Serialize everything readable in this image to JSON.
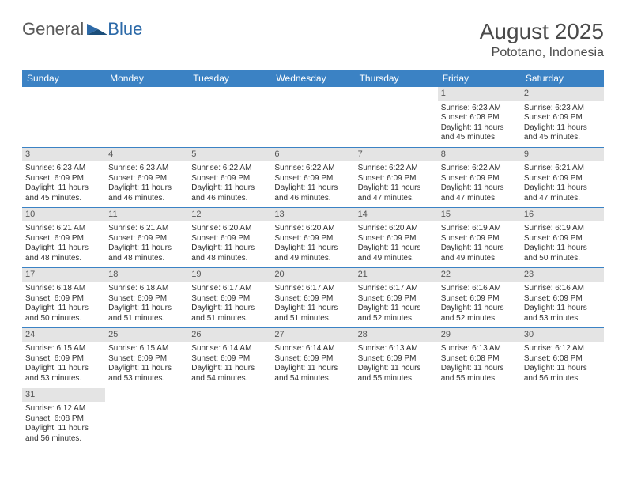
{
  "brand": {
    "part1": "General",
    "part2": "Blue"
  },
  "title": "August 2025",
  "location": "Pototano, Indonesia",
  "colors": {
    "header_bg": "#3b82c4",
    "header_fg": "#ffffff",
    "daynum_bg": "#e4e4e4",
    "row_border": "#3b82c4",
    "brand_gray": "#5a5a5a",
    "brand_blue": "#2d6aa8"
  },
  "weekdays": [
    "Sunday",
    "Monday",
    "Tuesday",
    "Wednesday",
    "Thursday",
    "Friday",
    "Saturday"
  ],
  "weeks": [
    [
      null,
      null,
      null,
      null,
      null,
      {
        "n": "1",
        "sr": "6:23 AM",
        "ss": "6:08 PM",
        "dl": "11 hours and 45 minutes."
      },
      {
        "n": "2",
        "sr": "6:23 AM",
        "ss": "6:09 PM",
        "dl": "11 hours and 45 minutes."
      }
    ],
    [
      {
        "n": "3",
        "sr": "6:23 AM",
        "ss": "6:09 PM",
        "dl": "11 hours and 45 minutes."
      },
      {
        "n": "4",
        "sr": "6:23 AM",
        "ss": "6:09 PM",
        "dl": "11 hours and 46 minutes."
      },
      {
        "n": "5",
        "sr": "6:22 AM",
        "ss": "6:09 PM",
        "dl": "11 hours and 46 minutes."
      },
      {
        "n": "6",
        "sr": "6:22 AM",
        "ss": "6:09 PM",
        "dl": "11 hours and 46 minutes."
      },
      {
        "n": "7",
        "sr": "6:22 AM",
        "ss": "6:09 PM",
        "dl": "11 hours and 47 minutes."
      },
      {
        "n": "8",
        "sr": "6:22 AM",
        "ss": "6:09 PM",
        "dl": "11 hours and 47 minutes."
      },
      {
        "n": "9",
        "sr": "6:21 AM",
        "ss": "6:09 PM",
        "dl": "11 hours and 47 minutes."
      }
    ],
    [
      {
        "n": "10",
        "sr": "6:21 AM",
        "ss": "6:09 PM",
        "dl": "11 hours and 48 minutes."
      },
      {
        "n": "11",
        "sr": "6:21 AM",
        "ss": "6:09 PM",
        "dl": "11 hours and 48 minutes."
      },
      {
        "n": "12",
        "sr": "6:20 AM",
        "ss": "6:09 PM",
        "dl": "11 hours and 48 minutes."
      },
      {
        "n": "13",
        "sr": "6:20 AM",
        "ss": "6:09 PM",
        "dl": "11 hours and 49 minutes."
      },
      {
        "n": "14",
        "sr": "6:20 AM",
        "ss": "6:09 PM",
        "dl": "11 hours and 49 minutes."
      },
      {
        "n": "15",
        "sr": "6:19 AM",
        "ss": "6:09 PM",
        "dl": "11 hours and 49 minutes."
      },
      {
        "n": "16",
        "sr": "6:19 AM",
        "ss": "6:09 PM",
        "dl": "11 hours and 50 minutes."
      }
    ],
    [
      {
        "n": "17",
        "sr": "6:18 AM",
        "ss": "6:09 PM",
        "dl": "11 hours and 50 minutes."
      },
      {
        "n": "18",
        "sr": "6:18 AM",
        "ss": "6:09 PM",
        "dl": "11 hours and 51 minutes."
      },
      {
        "n": "19",
        "sr": "6:17 AM",
        "ss": "6:09 PM",
        "dl": "11 hours and 51 minutes."
      },
      {
        "n": "20",
        "sr": "6:17 AM",
        "ss": "6:09 PM",
        "dl": "11 hours and 51 minutes."
      },
      {
        "n": "21",
        "sr": "6:17 AM",
        "ss": "6:09 PM",
        "dl": "11 hours and 52 minutes."
      },
      {
        "n": "22",
        "sr": "6:16 AM",
        "ss": "6:09 PM",
        "dl": "11 hours and 52 minutes."
      },
      {
        "n": "23",
        "sr": "6:16 AM",
        "ss": "6:09 PM",
        "dl": "11 hours and 53 minutes."
      }
    ],
    [
      {
        "n": "24",
        "sr": "6:15 AM",
        "ss": "6:09 PM",
        "dl": "11 hours and 53 minutes."
      },
      {
        "n": "25",
        "sr": "6:15 AM",
        "ss": "6:09 PM",
        "dl": "11 hours and 53 minutes."
      },
      {
        "n": "26",
        "sr": "6:14 AM",
        "ss": "6:09 PM",
        "dl": "11 hours and 54 minutes."
      },
      {
        "n": "27",
        "sr": "6:14 AM",
        "ss": "6:09 PM",
        "dl": "11 hours and 54 minutes."
      },
      {
        "n": "28",
        "sr": "6:13 AM",
        "ss": "6:09 PM",
        "dl": "11 hours and 55 minutes."
      },
      {
        "n": "29",
        "sr": "6:13 AM",
        "ss": "6:08 PM",
        "dl": "11 hours and 55 minutes."
      },
      {
        "n": "30",
        "sr": "6:12 AM",
        "ss": "6:08 PM",
        "dl": "11 hours and 56 minutes."
      }
    ],
    [
      {
        "n": "31",
        "sr": "6:12 AM",
        "ss": "6:08 PM",
        "dl": "11 hours and 56 minutes."
      },
      null,
      null,
      null,
      null,
      null,
      null
    ]
  ],
  "labels": {
    "sunrise": "Sunrise:",
    "sunset": "Sunset:",
    "daylight": "Daylight:"
  }
}
